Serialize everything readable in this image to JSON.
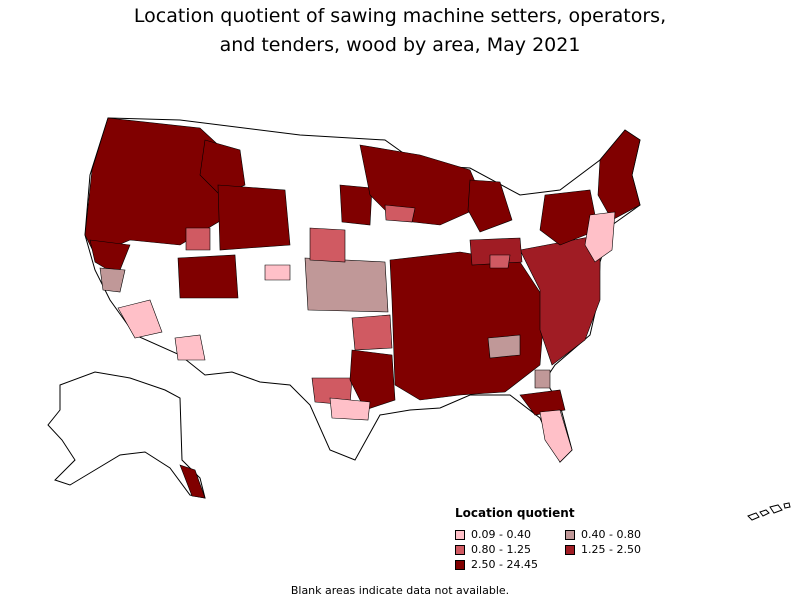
{
  "title_line1": "Location quotient of sawing machine setters, operators,",
  "title_line2": "and tenders, wood by area, May 2021",
  "legend": {
    "title": "Location quotient",
    "items": [
      {
        "label": "0.09 - 0.40",
        "color": "#ffc0c8"
      },
      {
        "label": "0.40 - 0.80",
        "color": "#c09898"
      },
      {
        "label": "0.80 - 1.25",
        "color": "#d05a62"
      },
      {
        "label": "1.25 - 2.50",
        "color": "#a01c24"
      },
      {
        "label": "2.50 - 24.45",
        "color": "#800000"
      }
    ]
  },
  "footnote": "Blank areas indicate data not available.",
  "colors": {
    "no_data": "#ffffff",
    "border": "#000000"
  }
}
